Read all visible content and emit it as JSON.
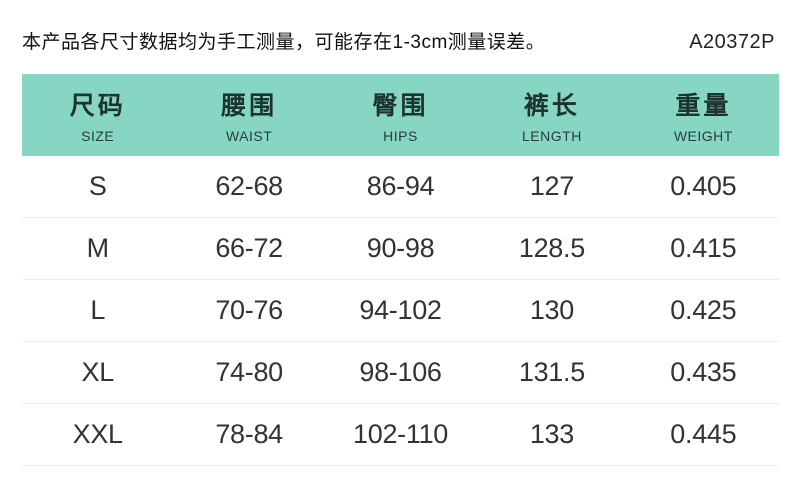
{
  "notice": {
    "text": "本产品各尺寸数据均为手工测量，可能存在1-3cm测量误差。",
    "code": "A20372P"
  },
  "table": {
    "accent_color": "#87d6c3",
    "separator_color": "#ececec",
    "columns": [
      {
        "zh": "尺码",
        "en": "SIZE"
      },
      {
        "zh": "腰围",
        "en": "WAIST"
      },
      {
        "zh": "臀围",
        "en": "HIPS"
      },
      {
        "zh": "裤长",
        "en": "LENGTH"
      },
      {
        "zh": "重量",
        "en": "WEIGHT"
      }
    ],
    "rows": [
      {
        "size": "S",
        "waist": "62-68",
        "hips": "86-94",
        "length": "127",
        "weight": "0.405"
      },
      {
        "size": "M",
        "waist": "66-72",
        "hips": "90-98",
        "length": "128.5",
        "weight": "0.415"
      },
      {
        "size": "L",
        "waist": "70-76",
        "hips": "94-102",
        "length": "130",
        "weight": "0.425"
      },
      {
        "size": "XL",
        "waist": "74-80",
        "hips": "98-106",
        "length": "131.5",
        "weight": "0.435"
      },
      {
        "size": "XXL",
        "waist": "78-84",
        "hips": "102-110",
        "length": "133",
        "weight": "0.445"
      }
    ]
  }
}
